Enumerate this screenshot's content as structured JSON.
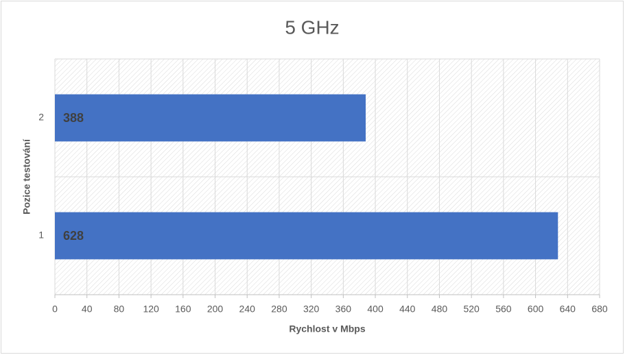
{
  "chart_data": {
    "type": "barh",
    "title": "5 GHz",
    "x_label": "Rychlost v Mbps",
    "y_label": "Pozice testování",
    "categories": [
      "1",
      "2"
    ],
    "values": [
      628,
      388
    ],
    "color": "#4472c4",
    "xlim": [
      0,
      680
    ],
    "xticks": [
      0,
      40,
      80,
      120,
      160,
      200,
      240,
      280,
      320,
      360,
      400,
      440,
      480,
      520,
      560,
      600,
      640,
      680
    ],
    "grid": true
  }
}
